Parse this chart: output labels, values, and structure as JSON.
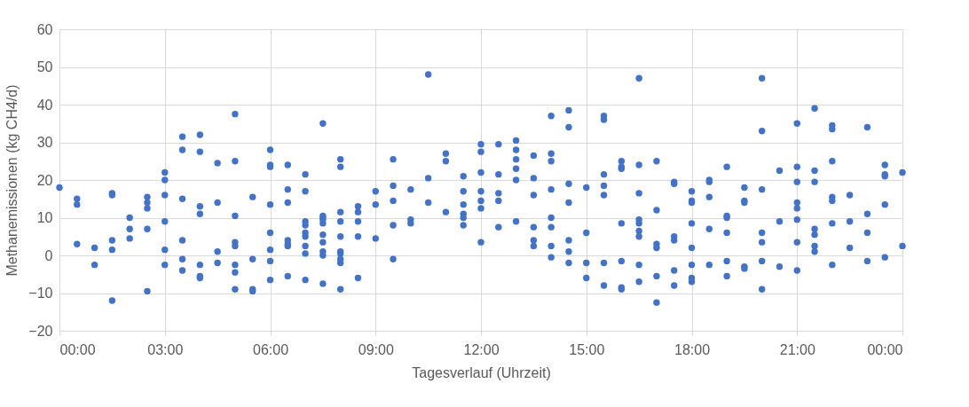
{
  "chart_data": {
    "type": "scatter",
    "xlabel": "Tagesverlauf (Uhrzeit)",
    "ylabel": "Methanemissionen (kg CH4/d)",
    "xlim": [
      0,
      24
    ],
    "ylim": [
      -20,
      60
    ],
    "xticks": [
      {
        "value": 0,
        "label": "00:00"
      },
      {
        "value": 3,
        "label": "03:00"
      },
      {
        "value": 6,
        "label": "06:00"
      },
      {
        "value": 9,
        "label": "09:00"
      },
      {
        "value": 12,
        "label": "12:00"
      },
      {
        "value": 15,
        "label": "15:00"
      },
      {
        "value": 18,
        "label": "18:00"
      },
      {
        "value": 21,
        "label": "21:00"
      },
      {
        "value": 24,
        "label": "00:00"
      }
    ],
    "yticks": [
      -20,
      -10,
      0,
      10,
      20,
      30,
      40,
      50,
      60
    ],
    "grid": true,
    "marker": "circle",
    "legend": false,
    "series": [
      {
        "color": "#4472c4",
        "x": [
          0,
          0.5,
          0.5,
          0.5,
          1,
          1,
          1.5,
          1.5,
          1.5,
          1.5,
          1.5,
          2,
          2,
          2,
          2.5,
          2.5,
          2.5,
          2.5,
          2.5,
          3,
          3,
          3,
          3,
          3,
          3,
          3.5,
          3.5,
          3.5,
          3.5,
          3.5,
          3.5,
          4,
          4,
          4,
          4,
          4,
          4,
          4,
          4.5,
          4.5,
          4.5,
          4.5,
          5,
          5,
          5,
          5,
          5,
          5,
          5,
          5,
          5.5,
          5.5,
          5.5,
          5.5,
          6,
          6,
          6,
          6,
          6,
          6,
          6,
          6,
          6.5,
          6.5,
          6.5,
          6.5,
          6.5,
          6.5,
          6.5,
          7,
          7,
          7,
          7,
          7,
          7,
          7,
          7,
          7,
          7.5,
          7.5,
          7.5,
          7.5,
          7.5,
          7.5,
          7.5,
          7.5,
          7.5,
          7.5,
          8,
          8,
          8,
          8,
          8,
          8,
          8,
          8,
          8,
          8,
          8.5,
          8.5,
          8.5,
          8.5,
          8.5,
          9,
          9,
          9,
          9.5,
          9.5,
          9.5,
          9.5,
          9.5,
          10,
          10,
          10,
          10.5,
          10.5,
          10.5,
          11,
          11,
          11,
          11.5,
          11.5,
          11.5,
          11.5,
          11.5,
          11.5,
          12,
          12,
          12,
          12,
          12,
          12,
          12,
          12.5,
          12.5,
          12.5,
          12.5,
          12.5,
          13,
          13,
          13,
          13,
          13,
          13,
          13.5,
          13.5,
          13.5,
          13.5,
          13.5,
          13.5,
          14,
          14,
          14,
          14,
          14,
          14,
          14,
          14,
          14.5,
          14.5,
          14.5,
          14.5,
          14.5,
          14.5,
          14.5,
          15,
          15,
          15,
          15,
          15.5,
          15.5,
          15.5,
          15.5,
          15.5,
          15.5,
          15.5,
          16,
          16,
          16,
          16,
          16,
          16,
          16,
          16.5,
          16.5,
          16.5,
          16.5,
          16.5,
          16.5,
          16.5,
          16.5,
          16.5,
          17,
          17,
          17,
          17,
          17,
          17,
          17.5,
          17.5,
          17.5,
          17.5,
          17.5,
          17.5,
          18,
          18,
          18,
          18,
          18,
          18,
          18,
          18,
          18.5,
          18.5,
          18.5,
          18.5,
          18.5,
          19,
          19,
          19,
          19,
          19,
          19,
          19.5,
          19.5,
          19.5,
          19.5,
          19.5,
          20,
          20,
          20,
          20,
          20,
          20,
          20,
          20.5,
          20.5,
          20.5,
          21,
          21,
          21,
          21,
          21,
          21,
          21,
          21,
          21.5,
          21.5,
          21.5,
          21.5,
          21.5,
          21.5,
          21.5,
          22,
          22,
          22,
          22,
          22,
          22,
          22,
          22.5,
          22.5,
          22.5,
          23,
          23,
          23,
          23,
          23.5,
          23.5,
          23.5,
          23.5,
          23.5,
          24,
          24
        ],
        "values": [
          18,
          15,
          13.5,
          3,
          2,
          -2.5,
          16.5,
          16,
          4,
          1.5,
          -12,
          10,
          7,
          4.5,
          15.5,
          14,
          12.5,
          7,
          -9.5,
          22,
          20,
          16,
          9,
          1.5,
          -2.5,
          31.5,
          28,
          15,
          4,
          -1,
          -4,
          32,
          27.5,
          13,
          11,
          -2.5,
          -5.5,
          -6,
          24.5,
          14,
          1,
          -2,
          37.5,
          25,
          10.5,
          3.5,
          2.5,
          -2.5,
          -4.5,
          -9,
          15.5,
          -1,
          -9.5,
          -9,
          28,
          24,
          23.5,
          13.5,
          6,
          1.5,
          -1.5,
          -6.5,
          24,
          17.5,
          14,
          4,
          3,
          2.5,
          -5.5,
          21.5,
          17,
          9,
          8,
          6,
          5,
          2.5,
          0.5,
          -6.5,
          35,
          10.5,
          10,
          9.5,
          8.5,
          5.5,
          3.5,
          1,
          0,
          -7.5,
          25.5,
          23.5,
          11.5,
          9,
          5,
          1,
          0.5,
          -1,
          -2,
          -9,
          13,
          11.5,
          9,
          5,
          -6,
          17,
          13.5,
          4.5,
          25.5,
          18.5,
          14.5,
          8,
          -1,
          17.5,
          9.5,
          8.5,
          48,
          20.5,
          14,
          27,
          25,
          11.5,
          21,
          17,
          13.5,
          11,
          10,
          8,
          29.5,
          27.5,
          22,
          17,
          14.5,
          12.5,
          3.5,
          29.5,
          21.5,
          16.5,
          14.5,
          7.5,
          30.5,
          28,
          25.5,
          23,
          20,
          9,
          26.5,
          20.5,
          16,
          7.5,
          4,
          2.5,
          37,
          27,
          25,
          17.5,
          10,
          7.5,
          2.5,
          -0.5,
          38.5,
          34,
          19,
          14,
          4,
          1,
          -2,
          18,
          6,
          -2,
          -6,
          37,
          36,
          21.5,
          18.5,
          16,
          -2,
          -8,
          25,
          23.5,
          23,
          8.5,
          -1.5,
          -8.5,
          -9,
          47,
          24,
          16.5,
          9.5,
          8.5,
          6.5,
          5,
          -2.5,
          -7,
          25,
          12,
          3,
          2,
          -5.5,
          -12.5,
          19.5,
          19,
          5,
          4,
          -4,
          -8,
          17,
          14.5,
          14,
          8.5,
          2,
          -2.5,
          -6,
          -7,
          20,
          19.5,
          15.5,
          7,
          -2.5,
          23.5,
          10.5,
          10,
          6,
          -1.5,
          -5.5,
          18,
          14.5,
          14,
          -3,
          -3.5,
          47,
          33,
          17.5,
          6,
          3.5,
          -1.5,
          -9,
          22.5,
          9,
          -3,
          35,
          23.5,
          19.5,
          14,
          12.5,
          9.5,
          3.5,
          -4,
          39,
          22.5,
          19.5,
          7,
          5.5,
          2.5,
          1,
          34.5,
          33.5,
          25,
          15.5,
          14.5,
          8.5,
          -2.5,
          16,
          9,
          2,
          34,
          11,
          6,
          -1.5,
          24,
          21.5,
          21,
          13.5,
          -0.5,
          22,
          2.5
        ]
      }
    ]
  }
}
